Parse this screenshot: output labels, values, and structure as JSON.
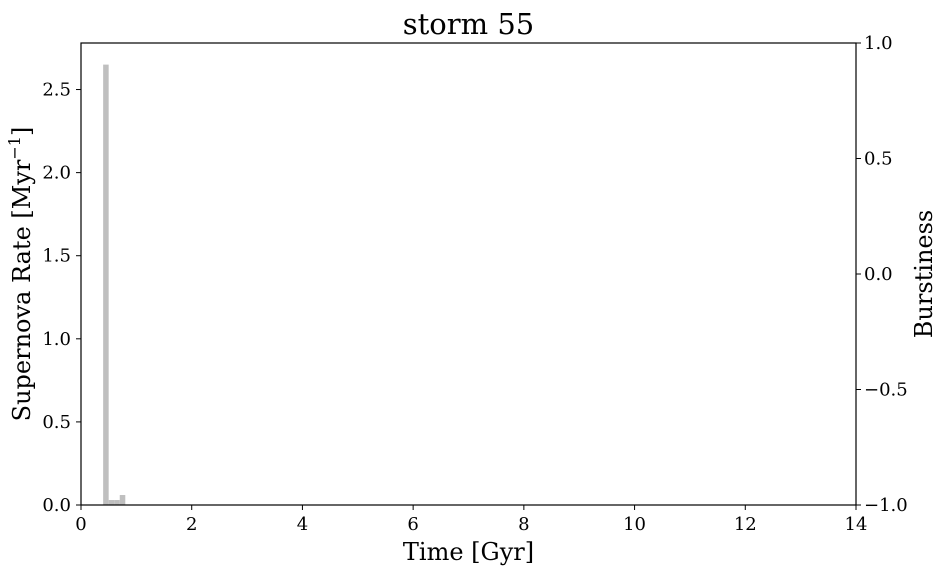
{
  "chart_data": {
    "type": "bar",
    "title": "storm 55",
    "xlabel": "Time [Gyr]",
    "ylabel": "Supernova Rate [Myr",
    "ylabel_sup": "−1",
    "ylabel_close": "]",
    "y2label": "Burstiness",
    "xlim": [
      0,
      14
    ],
    "ylim": [
      0,
      2.78
    ],
    "y2lim": [
      -1.0,
      1.0
    ],
    "x_ticks": [
      "0",
      "2",
      "4",
      "6",
      "8",
      "10",
      "12",
      "14"
    ],
    "y_ticks": [
      "0.0",
      "0.5",
      "1.0",
      "1.5",
      "2.0",
      "2.5"
    ],
    "y2_ticks": [
      "−1.0",
      "−0.5",
      "0.0",
      "0.5",
      "1.0"
    ],
    "bar_color": "#bfbfbf",
    "bin_width": 0.1,
    "bins": [
      {
        "x": 0.45,
        "value": 2.65
      },
      {
        "x": 0.55,
        "value": 0.03
      },
      {
        "x": 0.65,
        "value": 0.03
      },
      {
        "x": 0.75,
        "value": 0.06
      }
    ]
  }
}
